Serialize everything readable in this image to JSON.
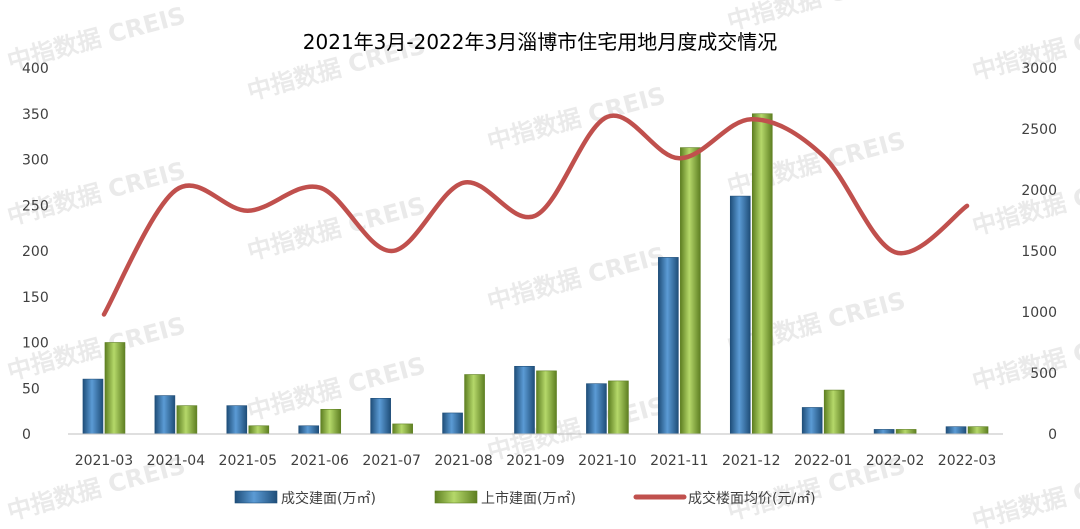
{
  "watermark": "中指数据 CREIS",
  "chart_data": {
    "type": "bar",
    "title": "2021年3月-2022年3月淄博市住宅用地月度成交情况",
    "categories": [
      "2021-03",
      "2021-04",
      "2021-05",
      "2021-06",
      "2021-07",
      "2021-08",
      "2021-09",
      "2021-10",
      "2021-11",
      "2021-12",
      "2022-01",
      "2022-02",
      "2022-03"
    ],
    "y_left": {
      "min": 0,
      "max": 400,
      "ticks": [
        0,
        50,
        100,
        150,
        200,
        250,
        300,
        350,
        400
      ]
    },
    "y_right": {
      "min": 0,
      "max": 3000,
      "ticks": [
        0,
        500,
        1000,
        1500,
        2000,
        2500,
        3000
      ]
    },
    "grid": false,
    "legend_position": "bottom",
    "series": [
      {
        "name": "成交建面(万㎡)",
        "type": "bar",
        "axis": "left",
        "color": "#2E75B6",
        "values": [
          60,
          42,
          31,
          9,
          39,
          23,
          74,
          55,
          193,
          260,
          29,
          5,
          8
        ]
      },
      {
        "name": "上市建面(万㎡)",
        "type": "bar",
        "axis": "left",
        "color": "#8DB43C",
        "values": [
          100,
          31,
          9,
          27,
          11,
          65,
          69,
          58,
          313,
          350,
          48,
          5,
          8
        ]
      },
      {
        "name": "成交楼面均价(元/㎡)",
        "type": "line",
        "axis": "right",
        "color": "#C0504D",
        "values": [
          980,
          2000,
          1830,
          2020,
          1500,
          2060,
          1790,
          2600,
          2260,
          2580,
          2280,
          1490,
          1870
        ]
      }
    ]
  }
}
